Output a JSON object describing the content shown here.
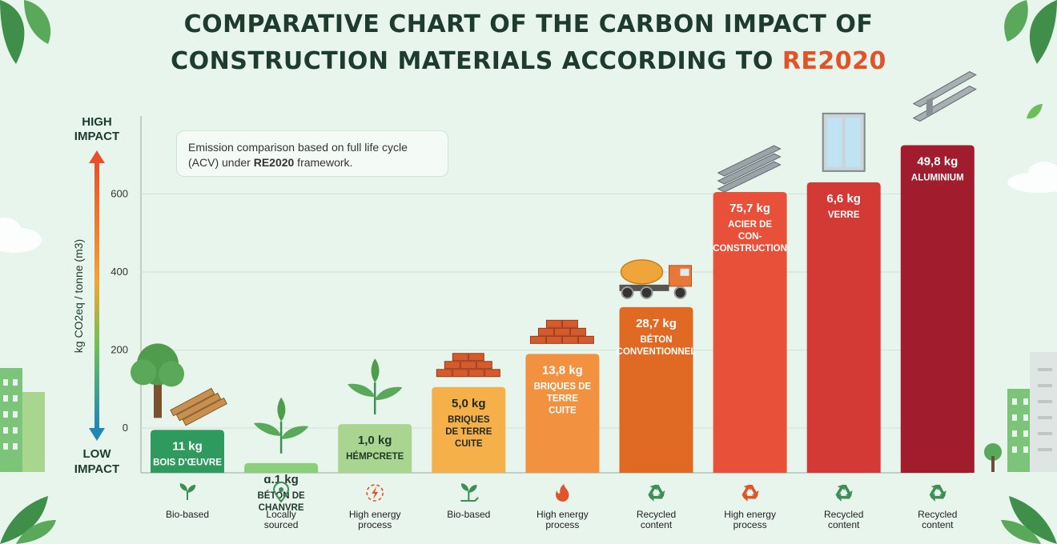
{
  "title": {
    "line1": "COMPARATIVE CHART OF THE CARBON IMPACT OF",
    "line2_prefix": "CONSTRUCTION MATERIALS ACCORDING TO ",
    "line2_accent": "RE2020"
  },
  "note": {
    "text_before": "Emission comparison based on full life cycle (ACV) under ",
    "bold": "RE2020",
    "text_after": " framework."
  },
  "colors": {
    "background": "#e8f5ec",
    "title": "#1d3b2e",
    "accent": "#e0542a"
  },
  "chart_data": {
    "type": "bar",
    "title": "COMPARATIVE CHART OF THE CARBON IMPACT OF CONSTRUCTION MATERIALS ACCORDING TO RE2020",
    "ylabel": "kg CO2eq / tonne (m3)",
    "y_top_label": "HIGH IMPACT",
    "y_bottom_label": "LOW IMPACT",
    "yticks": [
      0,
      200,
      400,
      600
    ],
    "ylim": [
      -115,
      800
    ],
    "grid": true,
    "categories": [
      "BOIS D'ŒUVRE",
      "BÉTON DE CHANVRE",
      "HÉMPCRETE",
      "BRIQUES DE TERRE CUITE",
      "BRIQUES DE TERRE CUITE",
      "BÉTON CONVENTIONNEL",
      "ACIER DE CON-CONSTRUCTION",
      "VERRE",
      "ALUMINIUM"
    ],
    "values": [
      -5,
      -90,
      10,
      105,
      190,
      310,
      605,
      630,
      725
    ],
    "bar_value_labels": [
      "11 kg",
      "ɑ.1 kg",
      "1,0 kg",
      "5,0 kg",
      "13,8 kg",
      "28,7 kg",
      "75,7 kg",
      "6,6 kg",
      "49,8 kg"
    ],
    "bar_name_lines": [
      [
        "BOIS D'ŒUVRE"
      ],
      [
        "BÉTON DE",
        "CHANVRE"
      ],
      [
        "HÉMPCRETE"
      ],
      [
        "BRIQUES",
        "DE TERRE",
        "CUITE"
      ],
      [
        "BRIQUES DE",
        "TERRE",
        "CUITE"
      ],
      [
        "BÉTON",
        "CONVENTIONNEL"
      ],
      [
        "ACIER DE",
        "CON-",
        "CONSTRUCTION"
      ],
      [
        "VERRE"
      ],
      [
        "ALUMINIUM"
      ]
    ],
    "bar_colors": [
      "#2e9a5e",
      "#8ccf7a",
      "#aad590",
      "#f5b04a",
      "#f29140",
      "#e06a23",
      "#e8503a",
      "#d33a35",
      "#a11d2e"
    ],
    "bar_text_colors": [
      "#ffffff",
      "#1f3a2a",
      "#1f3a2a",
      "#1f2a1f",
      "#ffffff",
      "#ffffff",
      "#ffffff",
      "#ffffff",
      "#ffffff"
    ],
    "properties": [
      {
        "lines": [
          "Bio-based"
        ],
        "icon": "sprout-icon"
      },
      {
        "lines": [
          "Locally",
          "sourced"
        ],
        "icon": "location-pin-icon"
      },
      {
        "lines": [
          "High energy",
          "process"
        ],
        "icon": "energy-icon"
      },
      {
        "lines": [
          "Bio-based"
        ],
        "icon": "hand-sprout-icon"
      },
      {
        "lines": [
          "High energy",
          "process"
        ],
        "icon": "flame-icon"
      },
      {
        "lines": [
          "Recycled",
          "content"
        ],
        "icon": "recycle-icon"
      },
      {
        "lines": [
          "High energy",
          "process"
        ],
        "icon": "recycle-icon"
      },
      {
        "lines": [
          "Recycled",
          "content"
        ],
        "icon": "recycle-icon"
      },
      {
        "lines": [
          "Recycled",
          "content"
        ],
        "icon": "recycle-icon"
      }
    ],
    "illustrations": [
      "tree-and-planks-icon",
      "leaf-sprout-icon",
      "leaf-sprout-icon",
      "bricks-icon",
      "bricks-icon",
      "cement-mixer-truck-icon",
      "steel-beams-icon",
      "window-icon",
      "steel-beam-icon"
    ]
  }
}
